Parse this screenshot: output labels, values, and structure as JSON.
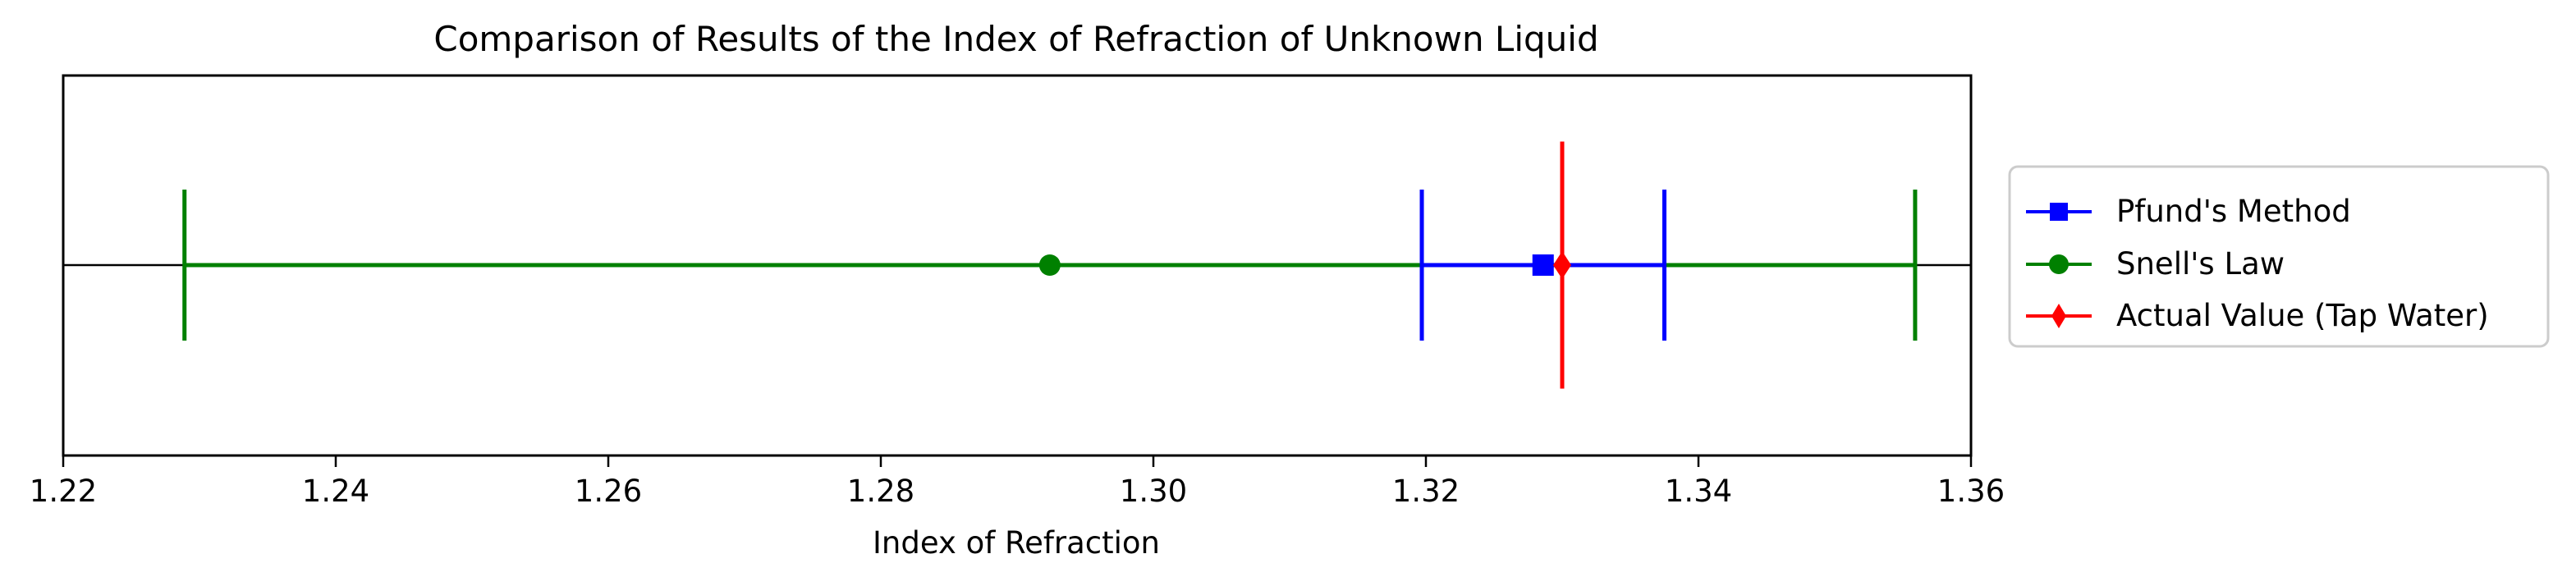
{
  "chart_data": {
    "type": "scatter",
    "title": "Comparison of Results of the Index of Refraction of Unknown Liquid",
    "xlabel": "Index of Refraction",
    "ylabel": "",
    "xlim": [
      1.22,
      1.36
    ],
    "xticks": [
      "1.22",
      "1.24",
      "1.26",
      "1.28",
      "1.30",
      "1.32",
      "1.34",
      "1.36"
    ],
    "y_ticks_visible": false,
    "grid": false,
    "legend_position": "right, outside plot",
    "series": [
      {
        "name": "Pfund's Method",
        "marker": "square",
        "color": "#0000ff",
        "x": 1.3286,
        "xerr": 0.0089,
        "yerr": 0.4
      },
      {
        "name": "Snell's Law",
        "marker": "circle",
        "color": "#008000",
        "x": 1.2924,
        "xerr": 0.0635,
        "yerr": 0.4
      },
      {
        "name": "Actual Value (Tap Water)",
        "marker": "diamond",
        "color": "#ff0000",
        "x": 1.33,
        "xerr": 0,
        "yerr": 0.65
      }
    ],
    "reference_line": {
      "y": 0,
      "color": "#000000"
    }
  }
}
